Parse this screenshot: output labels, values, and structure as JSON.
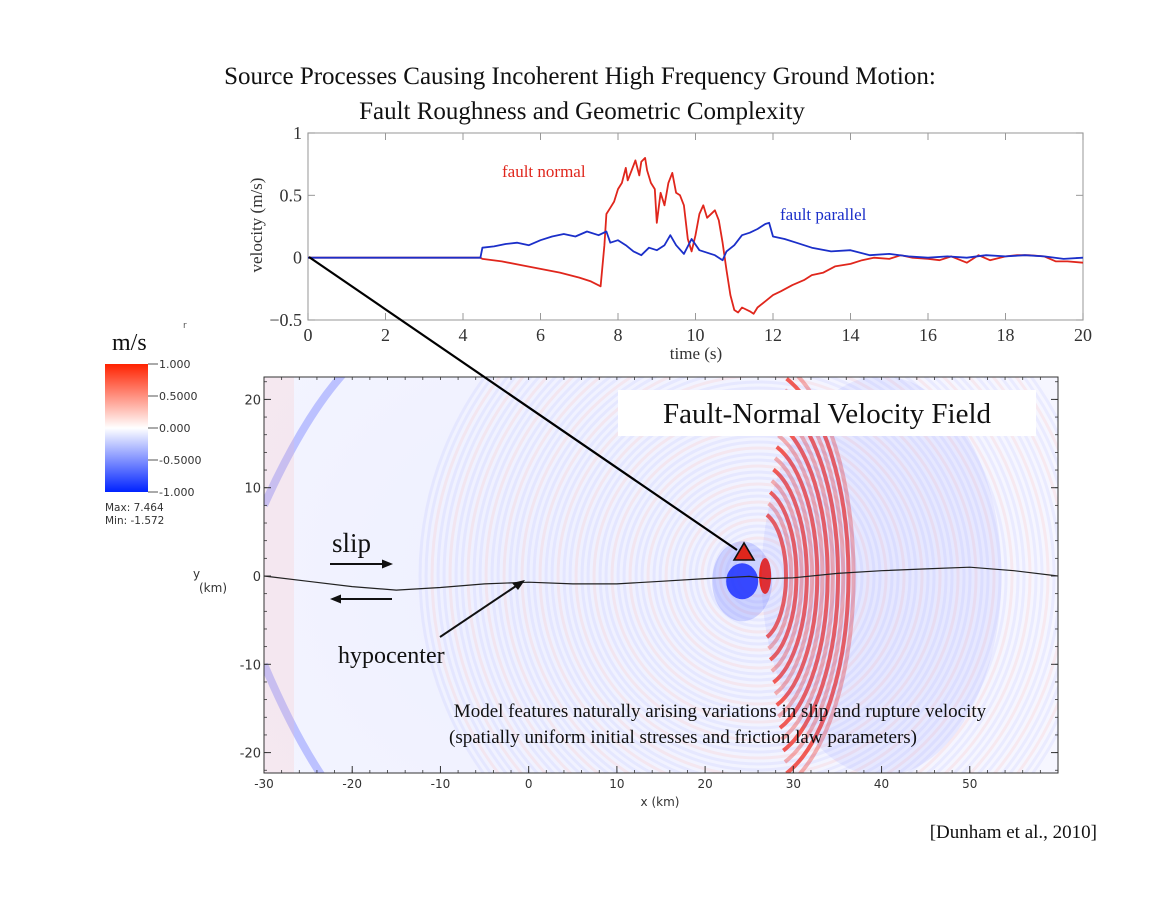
{
  "slide": {
    "title_line1": "Source Processes Causing Incoherent High Frequency Ground Motion:",
    "title_line2": "Fault Roughness and Geometric Complexity",
    "citation": "[Dunham et al., 2010]",
    "annotation_line1": "Model features naturally arising variations in slip and rupture velocity",
    "annotation_line2": "(spatially uniform initial stresses and friction law parameters)",
    "slip_label": "slip",
    "hypocenter_label": "hypocenter"
  },
  "colorbar": {
    "unit": "m/s",
    "ticks": [
      "1.000",
      "0.5000",
      "0.000",
      "-0.5000",
      "-1.000"
    ],
    "max_label": "Max: 7.464",
    "min_label": "Min: -1.572",
    "colors": {
      "high": "#ff2200",
      "mid": "#ffffff",
      "low": "#0022ff"
    }
  },
  "chart_data": [
    {
      "type": "line",
      "title": "",
      "xlabel": "time (s)",
      "ylabel": "velocity (m/s)",
      "xlim": [
        0,
        20
      ],
      "ylim": [
        -0.5,
        1
      ],
      "xticks": [
        "0",
        "2",
        "4",
        "6",
        "8",
        "10",
        "12",
        "14",
        "16",
        "18",
        "20"
      ],
      "yticks": [
        "1",
        "0.5",
        "0",
        "−0.5"
      ],
      "grid": false,
      "series": [
        {
          "name": "fault normal",
          "color": "#e0261c",
          "x": [
            0,
            4.45,
            4.5,
            5.0,
            5.5,
            6.0,
            6.5,
            7.0,
            7.3,
            7.55,
            7.65,
            7.7,
            7.8,
            7.9,
            8.0,
            8.1,
            8.2,
            8.25,
            8.35,
            8.45,
            8.55,
            8.6,
            8.7,
            8.75,
            8.85,
            8.95,
            9.0,
            9.1,
            9.2,
            9.3,
            9.4,
            9.5,
            9.6,
            9.7,
            9.8,
            9.9,
            10.0,
            10.1,
            10.2,
            10.3,
            10.5,
            10.6,
            10.7,
            10.8,
            10.9,
            11.0,
            11.1,
            11.2,
            11.4,
            11.5,
            11.6,
            11.8,
            12.0,
            12.2,
            12.5,
            12.8,
            13.0,
            13.3,
            13.6,
            14.0,
            14.3,
            14.6,
            15.0,
            15.3,
            15.6,
            16.0,
            16.3,
            16.6,
            17.0,
            17.3,
            17.6,
            18.0,
            18.3,
            18.6,
            19.0,
            19.3,
            19.6,
            20.0
          ],
          "y": [
            0,
            0,
            -0.01,
            -0.03,
            -0.06,
            -0.09,
            -0.12,
            -0.16,
            -0.19,
            -0.23,
            0.1,
            0.35,
            0.4,
            0.45,
            0.55,
            0.6,
            0.72,
            0.62,
            0.7,
            0.78,
            0.66,
            0.77,
            0.8,
            0.7,
            0.6,
            0.55,
            0.28,
            0.52,
            0.42,
            0.6,
            0.68,
            0.52,
            0.5,
            0.42,
            0.15,
            0.05,
            0.18,
            0.35,
            0.42,
            0.32,
            0.38,
            0.3,
            0.12,
            -0.1,
            -0.3,
            -0.42,
            -0.44,
            -0.4,
            -0.43,
            -0.45,
            -0.4,
            -0.35,
            -0.3,
            -0.27,
            -0.22,
            -0.18,
            -0.14,
            -0.12,
            -0.07,
            -0.05,
            -0.02,
            0,
            -0.01,
            0.02,
            0.0,
            -0.01,
            -0.02,
            0.01,
            -0.04,
            0.02,
            -0.02,
            0.01,
            0.02,
            0.02,
            0.01,
            -0.03,
            -0.03,
            -0.04
          ]
        },
        {
          "name": "fault parallel",
          "color": "#1b2fc9",
          "x": [
            0,
            4.45,
            4.5,
            4.8,
            5.1,
            5.4,
            5.7,
            6.0,
            6.3,
            6.6,
            6.9,
            7.2,
            7.5,
            7.7,
            7.8,
            8.0,
            8.2,
            8.4,
            8.6,
            8.8,
            9.0,
            9.2,
            9.35,
            9.5,
            9.7,
            9.9,
            10.1,
            10.3,
            10.5,
            10.7,
            10.8,
            11.0,
            11.2,
            11.4,
            11.6,
            11.8,
            11.9,
            12.0,
            12.3,
            12.6,
            13.0,
            13.5,
            14.0,
            14.5,
            15.0,
            15.5,
            16.0,
            16.5,
            17.0,
            17.5,
            18.0,
            18.5,
            19.0,
            19.5,
            20.0
          ],
          "y": [
            0,
            0,
            0.08,
            0.09,
            0.11,
            0.12,
            0.1,
            0.14,
            0.17,
            0.19,
            0.17,
            0.21,
            0.18,
            0.21,
            0.12,
            0.14,
            0.1,
            0.05,
            0.02,
            0.08,
            0.06,
            0.1,
            0.18,
            0.1,
            0.03,
            0.15,
            0.06,
            0.04,
            0.02,
            -0.02,
            0.05,
            0.1,
            0.18,
            0.2,
            0.23,
            0.27,
            0.28,
            0.17,
            0.15,
            0.12,
            0.08,
            0.05,
            0.06,
            0.02,
            0.03,
            0.01,
            0.0,
            0.01,
            0.0,
            0.02,
            0.01,
            0.02,
            0.01,
            -0.01,
            0.0
          ]
        }
      ],
      "legend_placement": "inline-labels"
    },
    {
      "type": "heatmap",
      "title": "Fault-Normal Velocity Field",
      "xlabel": "x (km)",
      "ylabel": "y (km)",
      "xlim": [
        -30,
        60
      ],
      "ylim": [
        -22.5,
        22.5
      ],
      "xticks": [
        "-30",
        "-20",
        "-10",
        "0",
        "10",
        "20",
        "30",
        "40",
        "50"
      ],
      "yticks": [
        "20",
        "10",
        "0",
        "-10",
        "-20"
      ],
      "colorscale_range": [
        -1,
        1
      ],
      "fault_trace": {
        "x": [
          -30,
          -25,
          -20,
          -15,
          -10,
          -5,
          0,
          5,
          10,
          15,
          20,
          22,
          25,
          27,
          30,
          35,
          40,
          45,
          50,
          55,
          60
        ],
        "y": [
          0,
          -0.6,
          -1.2,
          -1.6,
          -1.3,
          -0.9,
          -0.7,
          -0.9,
          -0.9,
          -0.6,
          -0.3,
          -0.2,
          -0.05,
          -0.3,
          -0.2,
          0.3,
          0.6,
          0.8,
          1.0,
          0.6,
          0.0
        ]
      },
      "station": {
        "x": 24.5,
        "y": 2.5,
        "marker": "triangle",
        "color": "#e0261c"
      },
      "hypocenter": {
        "x": 0,
        "y": -0.7
      },
      "wavefront_front_radius_km": 36
    }
  ]
}
